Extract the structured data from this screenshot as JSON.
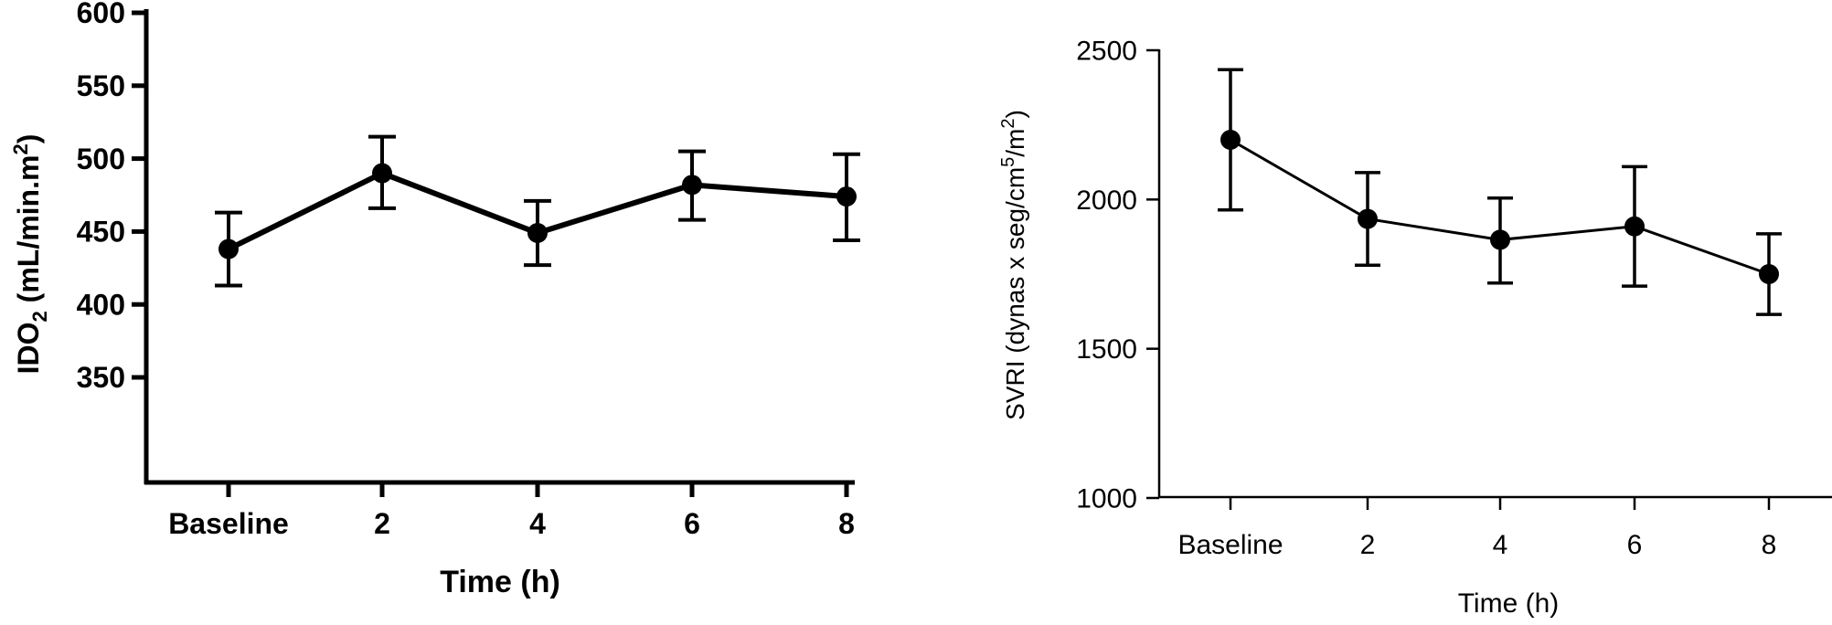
{
  "chart_data": [
    {
      "type": "line",
      "title": "",
      "xlabel": "Time (h)",
      "ylabel": "IDO",
      "ylabel_sub": "2",
      "ylabel_rest": " (mL/min.m",
      "ylabel_sup": "2",
      "ylabel_end": ")",
      "ylim": [
        350,
        600
      ],
      "yticks": [
        "350",
        "400",
        "450",
        "500",
        "550",
        "600"
      ],
      "categories": [
        "Baseline",
        "2",
        "4",
        "6",
        "8"
      ],
      "series": [
        {
          "values": [
            438,
            490,
            449,
            482,
            474
          ],
          "error_upper": [
            463,
            515,
            471,
            505,
            503
          ],
          "error_lower": [
            413,
            466,
            427,
            458,
            444
          ]
        }
      ],
      "grid": false,
      "legend": "none"
    },
    {
      "type": "line",
      "title": "",
      "xlabel": "Time (h)",
      "ylabel": "SVRI (dynas x seg/cm",
      "ylabel_sup1": "5",
      "ylabel_mid": "/m",
      "ylabel_sup2": "2",
      "ylabel_end": ")",
      "ylim": [
        1000,
        2500
      ],
      "yticks": [
        "1000",
        "1500",
        "2000",
        "2500"
      ],
      "categories": [
        "Baseline",
        "2",
        "4",
        "6",
        "8"
      ],
      "series": [
        {
          "values": [
            2200,
            1935,
            1865,
            1910,
            1750
          ],
          "error_upper": [
            2435,
            2090,
            2005,
            2110,
            1885
          ],
          "error_lower": [
            1965,
            1780,
            1720,
            1710,
            1615
          ]
        }
      ],
      "grid": false,
      "legend": "none"
    }
  ]
}
